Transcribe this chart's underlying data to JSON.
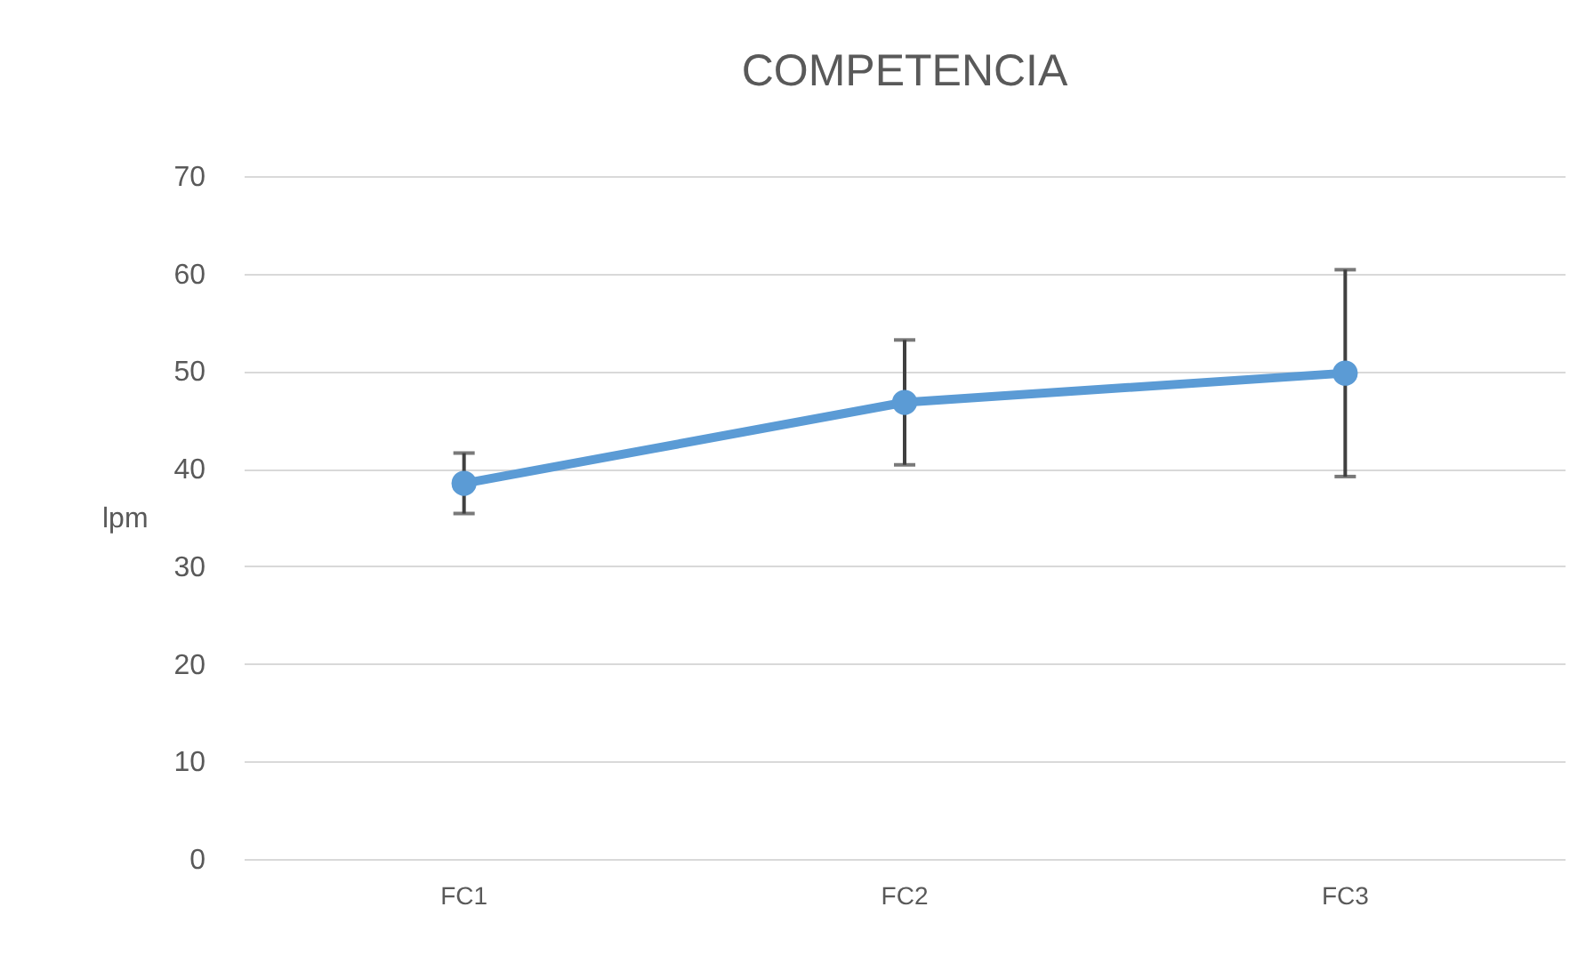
{
  "chart_data": {
    "type": "line",
    "title": "COMPETENCIA",
    "ylabel": "lpm",
    "categories": [
      "FC1",
      "FC2",
      "FC3"
    ],
    "series": [
      {
        "color": "#5b9bd5",
        "values": [
          38.5,
          46.8,
          49.8
        ],
        "errors": [
          3.1,
          6.4,
          10.6
        ]
      }
    ],
    "ylim": [
      0,
      70
    ],
    "yticks": [
      0,
      10,
      20,
      30,
      40,
      50,
      60,
      70
    ],
    "grid": "y",
    "marker": "circle"
  }
}
